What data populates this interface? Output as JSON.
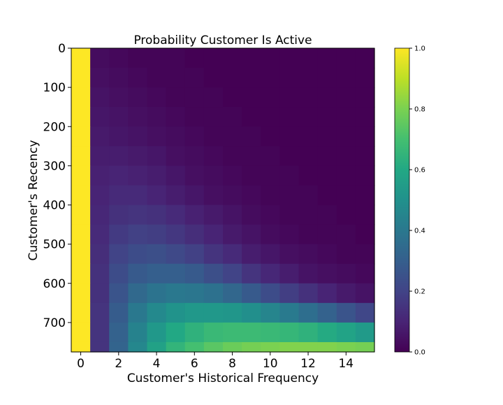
{
  "chart_data": {
    "type": "heatmap",
    "title": "Probability Customer Is Active",
    "xlabel": "Customer's Historical Frequency",
    "ylabel": "Customer's Recency",
    "x_ticks": [
      0,
      2,
      4,
      6,
      8,
      10,
      12,
      14
    ],
    "y_ticks": [
      0,
      100,
      200,
      300,
      400,
      500,
      600,
      700
    ],
    "xlim": [
      -0.5,
      15.5
    ],
    "ylim": [
      775,
      0
    ],
    "y_inverted": true,
    "colormap": "viridis",
    "colorbar": {
      "range": [
        0.0,
        1.0
      ],
      "ticks": [
        "0.0",
        "0.2",
        "0.4",
        "0.6",
        "0.8",
        "1.0"
      ]
    },
    "frequency_values": [
      0,
      1,
      2,
      3,
      4,
      5,
      6,
      7,
      8,
      9,
      10,
      11,
      12,
      13,
      14,
      15
    ],
    "recency_values": [
      0,
      50,
      100,
      150,
      200,
      250,
      300,
      350,
      400,
      450,
      500,
      550,
      600,
      650,
      700,
      750
    ],
    "probability": [
      [
        1.0,
        0.03,
        0.02,
        0.01,
        0.01,
        0.01,
        0.0,
        0.0,
        0.0,
        0.0,
        0.0,
        0.0,
        0.0,
        0.0,
        0.0,
        0.0
      ],
      [
        1.0,
        0.04,
        0.03,
        0.02,
        0.01,
        0.01,
        0.01,
        0.0,
        0.0,
        0.0,
        0.0,
        0.0,
        0.0,
        0.0,
        0.0,
        0.0
      ],
      [
        1.0,
        0.05,
        0.04,
        0.03,
        0.02,
        0.01,
        0.01,
        0.01,
        0.0,
        0.0,
        0.0,
        0.0,
        0.0,
        0.0,
        0.0,
        0.0
      ],
      [
        1.0,
        0.06,
        0.05,
        0.04,
        0.03,
        0.02,
        0.01,
        0.01,
        0.01,
        0.0,
        0.0,
        0.0,
        0.0,
        0.0,
        0.0,
        0.0
      ],
      [
        1.0,
        0.07,
        0.06,
        0.05,
        0.04,
        0.03,
        0.02,
        0.01,
        0.01,
        0.01,
        0.0,
        0.0,
        0.0,
        0.0,
        0.0,
        0.0
      ],
      [
        1.0,
        0.08,
        0.08,
        0.07,
        0.06,
        0.04,
        0.03,
        0.02,
        0.01,
        0.01,
        0.01,
        0.0,
        0.0,
        0.0,
        0.0,
        0.0
      ],
      [
        1.0,
        0.09,
        0.1,
        0.09,
        0.08,
        0.06,
        0.04,
        0.03,
        0.02,
        0.01,
        0.01,
        0.01,
        0.0,
        0.0,
        0.0,
        0.0
      ],
      [
        1.0,
        0.1,
        0.12,
        0.12,
        0.1,
        0.08,
        0.06,
        0.04,
        0.03,
        0.02,
        0.01,
        0.01,
        0.01,
        0.0,
        0.0,
        0.0
      ],
      [
        1.0,
        0.11,
        0.14,
        0.15,
        0.14,
        0.12,
        0.09,
        0.07,
        0.05,
        0.03,
        0.02,
        0.01,
        0.01,
        0.01,
        0.0,
        0.0
      ],
      [
        1.0,
        0.12,
        0.17,
        0.19,
        0.18,
        0.16,
        0.13,
        0.1,
        0.07,
        0.05,
        0.03,
        0.02,
        0.01,
        0.01,
        0.01,
        0.0
      ],
      [
        1.0,
        0.13,
        0.2,
        0.23,
        0.24,
        0.22,
        0.19,
        0.15,
        0.12,
        0.08,
        0.06,
        0.04,
        0.03,
        0.02,
        0.01,
        0.01
      ],
      [
        1.0,
        0.14,
        0.23,
        0.28,
        0.3,
        0.3,
        0.28,
        0.24,
        0.2,
        0.15,
        0.11,
        0.08,
        0.05,
        0.04,
        0.03,
        0.02
      ],
      [
        1.0,
        0.14,
        0.26,
        0.34,
        0.38,
        0.4,
        0.39,
        0.37,
        0.33,
        0.28,
        0.23,
        0.18,
        0.14,
        0.1,
        0.07,
        0.05
      ],
      [
        1.0,
        0.15,
        0.29,
        0.4,
        0.47,
        0.51,
        0.53,
        0.53,
        0.52,
        0.49,
        0.45,
        0.41,
        0.36,
        0.31,
        0.26,
        0.21
      ],
      [
        1.0,
        0.15,
        0.31,
        0.44,
        0.53,
        0.6,
        0.64,
        0.67,
        0.68,
        0.68,
        0.67,
        0.66,
        0.64,
        0.61,
        0.58,
        0.54
      ],
      [
        1.0,
        0.15,
        0.32,
        0.46,
        0.57,
        0.65,
        0.7,
        0.74,
        0.77,
        0.79,
        0.8,
        0.81,
        0.81,
        0.81,
        0.8,
        0.79
      ]
    ]
  }
}
